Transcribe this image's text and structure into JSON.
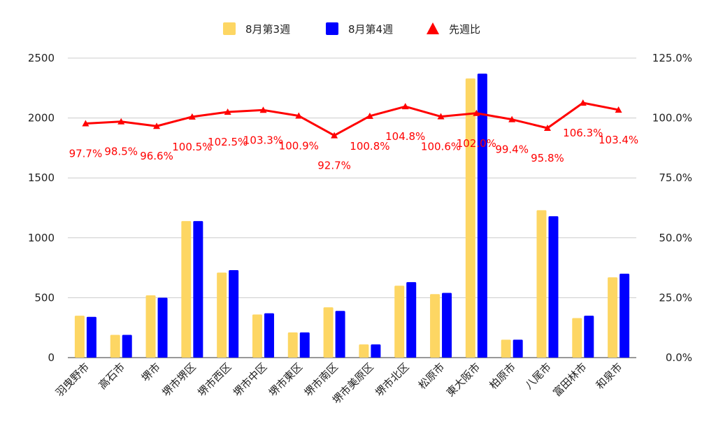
{
  "chart_data": {
    "type": "bar",
    "categories": [
      "羽曳野市",
      "高石市",
      "堺市",
      "堺市堺区",
      "堺市西区",
      "堺市中区",
      "堺市東区",
      "堺市南区",
      "堺市美原区",
      "堺市北区",
      "松原市",
      "東大阪市",
      "柏原市",
      "八尾市",
      "富田林市",
      "和泉市"
    ],
    "series": [
      {
        "name": "8月第3週",
        "kind": "bar",
        "axis": "left",
        "color": "#fdd663",
        "values": [
          350,
          190,
          520,
          1140,
          710,
          360,
          210,
          420,
          110,
          600,
          530,
          2330,
          150,
          1230,
          330,
          670
        ]
      },
      {
        "name": "8月第4週",
        "kind": "bar",
        "axis": "left",
        "color": "#0000ff",
        "values": [
          340,
          190,
          500,
          1140,
          730,
          370,
          210,
          390,
          110,
          630,
          540,
          2370,
          150,
          1180,
          350,
          700
        ]
      },
      {
        "name": "先週比",
        "kind": "line",
        "axis": "right",
        "color": "#ff0000",
        "values": [
          97.7,
          98.5,
          96.6,
          100.5,
          102.5,
          103.3,
          100.9,
          92.7,
          100.8,
          104.8,
          100.6,
          102.0,
          99.4,
          95.8,
          106.3,
          103.4
        ],
        "labels": [
          "97.7%",
          "98.5%",
          "96.6%",
          "100.5%",
          "102.5%",
          "103.3%",
          "100.9%",
          "92.7%",
          "100.8%",
          "104.8%",
          "100.6%",
          "102.0%",
          "99.4%",
          "95.8%",
          "106.3%",
          "103.4%"
        ]
      }
    ],
    "left_axis": {
      "ticks": [
        "0",
        "500",
        "1000",
        "1500",
        "2000",
        "2500"
      ],
      "ylim": [
        0,
        2500
      ]
    },
    "right_axis": {
      "ticks": [
        "0.0%",
        "25.0%",
        "50.0%",
        "75.0%",
        "100.0%",
        "125.0%"
      ],
      "ylim": [
        0,
        125
      ]
    },
    "legend": {
      "placement": "top-center",
      "items": [
        "8月第3週",
        "8月第4週",
        "先週比"
      ]
    },
    "grid": true
  }
}
